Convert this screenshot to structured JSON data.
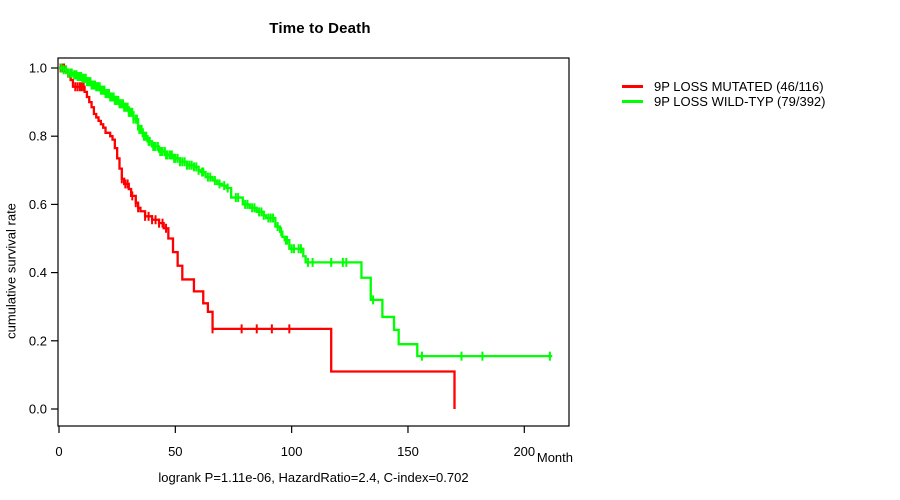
{
  "title": "Time to Death",
  "axes": {
    "x_label": "Month",
    "y_label": "cumulative survival rate"
  },
  "caption": "logrank P=1.11e-06, HazardRatio=2.4, C-index=0.702",
  "chart_data": {
    "type": "line",
    "subtype": "kaplan-meier-step-curves",
    "title": "Time to Death",
    "xlabel": "Month",
    "ylabel": "cumulative survival rate",
    "annotation": "logrank P=1.11e-06, HazardRatio=2.4, C-index=0.702",
    "xlim": [
      0,
      219
    ],
    "ylim": [
      0,
      1.0
    ],
    "grid": false,
    "legend_position": "right-outside",
    "x_ticks": [
      0,
      50,
      100,
      150,
      200
    ],
    "x_tick_labels": [
      "0",
      "50",
      "100",
      "150",
      "200"
    ],
    "y_ticks": [
      0.0,
      0.2,
      0.4,
      0.6,
      0.8,
      1.0
    ],
    "y_tick_labels": [
      "0.0",
      "0.2",
      "0.4",
      "0.6",
      "0.8",
      "1.0"
    ],
    "series": [
      {
        "id": "mutated",
        "name": "9P LOSS MUTATED (46/116)",
        "color": "#ff0000",
        "steps": [
          [
            0,
            1.0
          ],
          [
            3,
            0.99
          ],
          [
            4,
            0.975
          ],
          [
            5,
            0.965
          ],
          [
            6,
            0.945
          ],
          [
            11,
            0.93
          ],
          [
            12,
            0.915
          ],
          [
            13,
            0.9
          ],
          [
            14,
            0.885
          ],
          [
            15,
            0.865
          ],
          [
            16,
            0.855
          ],
          [
            17,
            0.845
          ],
          [
            18,
            0.835
          ],
          [
            19,
            0.825
          ],
          [
            20,
            0.81
          ],
          [
            22,
            0.8
          ],
          [
            23,
            0.79
          ],
          [
            24,
            0.765
          ],
          [
            25,
            0.735
          ],
          [
            26,
            0.705
          ],
          [
            27,
            0.675
          ],
          [
            28,
            0.66
          ],
          [
            30,
            0.645
          ],
          [
            31,
            0.625
          ],
          [
            33,
            0.605
          ],
          [
            34,
            0.59
          ],
          [
            35,
            0.58
          ],
          [
            37,
            0.565
          ],
          [
            40,
            0.555
          ],
          [
            43,
            0.545
          ],
          [
            45,
            0.53
          ],
          [
            47,
            0.5
          ],
          [
            49,
            0.46
          ],
          [
            51,
            0.42
          ],
          [
            53,
            0.38
          ],
          [
            58,
            0.345
          ],
          [
            62,
            0.31
          ],
          [
            64,
            0.285
          ],
          [
            66,
            0.235
          ],
          [
            117,
            0.11
          ],
          [
            170,
            0.0
          ]
        ],
        "censor_marks": [
          0.7,
          1.4,
          2.2,
          7,
          8,
          9,
          9.8,
          10.6,
          27,
          28.5,
          29.5,
          31.5,
          33,
          34,
          37,
          38.5,
          40,
          41.5,
          43,
          44.5,
          46,
          66,
          78.5,
          85,
          91.5,
          99
        ]
      },
      {
        "id": "wildtype",
        "name": "9P LOSS WILD-TYP (79/392)",
        "color": "#00ff00",
        "steps": [
          [
            0,
            1.0
          ],
          [
            2,
            0.995
          ],
          [
            4,
            0.985
          ],
          [
            6,
            0.98
          ],
          [
            8,
            0.975
          ],
          [
            10,
            0.97
          ],
          [
            12,
            0.96
          ],
          [
            14,
            0.95
          ],
          [
            16,
            0.945
          ],
          [
            18,
            0.935
          ],
          [
            20,
            0.925
          ],
          [
            22,
            0.915
          ],
          [
            24,
            0.905
          ],
          [
            26,
            0.895
          ],
          [
            28,
            0.885
          ],
          [
            30,
            0.87
          ],
          [
            32,
            0.85
          ],
          [
            34,
            0.82
          ],
          [
            36,
            0.8
          ],
          [
            38,
            0.785
          ],
          [
            40,
            0.77
          ],
          [
            43,
            0.755
          ],
          [
            46,
            0.745
          ],
          [
            49,
            0.735
          ],
          [
            52,
            0.725
          ],
          [
            55,
            0.715
          ],
          [
            58,
            0.71
          ],
          [
            60,
            0.7
          ],
          [
            61,
            0.695
          ],
          [
            63,
            0.68
          ],
          [
            66,
            0.67
          ],
          [
            68,
            0.66
          ],
          [
            70,
            0.655
          ],
          [
            72,
            0.648
          ],
          [
            74,
            0.62
          ],
          [
            79,
            0.6
          ],
          [
            82,
            0.59
          ],
          [
            85,
            0.578
          ],
          [
            88,
            0.568
          ],
          [
            89,
            0.56
          ],
          [
            93,
            0.535
          ],
          [
            95,
            0.52
          ],
          [
            96,
            0.505
          ],
          [
            97,
            0.495
          ],
          [
            99,
            0.47
          ],
          [
            105,
            0.448
          ],
          [
            106,
            0.43
          ],
          [
            130,
            0.385
          ],
          [
            134,
            0.32
          ],
          [
            139,
            0.27
          ],
          [
            144,
            0.232
          ],
          [
            146,
            0.19
          ],
          [
            154,
            0.155
          ],
          [
            212,
            0.155
          ]
        ],
        "censor_marks": [
          1,
          2,
          3,
          4,
          5,
          5.5,
          6.5,
          7,
          7.5,
          8,
          8.5,
          9,
          9.5,
          10,
          10.5,
          11,
          11.5,
          12,
          12.5,
          13,
          13.5,
          14,
          14.5,
          15,
          15.5,
          16,
          16.5,
          17,
          17.5,
          18,
          18.5,
          19,
          19.5,
          20,
          20.5,
          21,
          21.5,
          22,
          22.5,
          23,
          23.5,
          24,
          24.5,
          25,
          25.5,
          26,
          26.5,
          27,
          27.5,
          28,
          28.5,
          29,
          29.5,
          30,
          30.5,
          31,
          31.5,
          32,
          33,
          33.5,
          34.5,
          35,
          35.5,
          36.5,
          37,
          37.5,
          38.5,
          39,
          40.5,
          41,
          41.5,
          42.5,
          43.5,
          44,
          44.5,
          45.5,
          46,
          46.5,
          47.5,
          48,
          48.5,
          49.5,
          50,
          51,
          52,
          53,
          54,
          55,
          56,
          57,
          58,
          59,
          60,
          61.5,
          62,
          64,
          65,
          67,
          69,
          71,
          72.5,
          76,
          77,
          80,
          81,
          83,
          84,
          86,
          87,
          88,
          90,
          91,
          92,
          94,
          95.5,
          97.5,
          98,
          100,
          101,
          103,
          104,
          107,
          109,
          117,
          122,
          123.5,
          135,
          156,
          173,
          182,
          211
        ]
      }
    ]
  }
}
